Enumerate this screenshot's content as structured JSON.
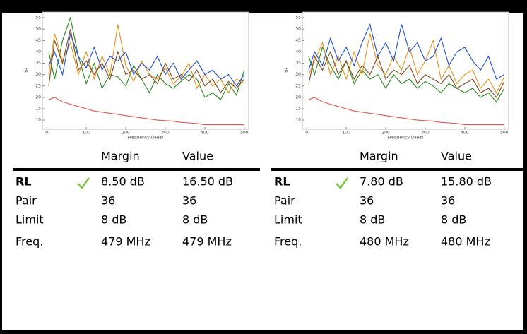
{
  "chart_data": [
    {
      "type": "line",
      "ylabel": "dB",
      "xlabel": "Frequency (MHz)",
      "x": [
        5,
        20,
        40,
        60,
        80,
        100,
        120,
        140,
        160,
        180,
        200,
        220,
        240,
        260,
        280,
        300,
        320,
        340,
        360,
        380,
        400,
        420,
        440,
        460,
        480,
        500
      ],
      "xlim": [
        -11,
        511
      ],
      "ylim": [
        6,
        57.5
      ],
      "xticks": [
        0,
        100,
        200,
        300,
        400,
        500
      ],
      "yticks": [
        10,
        15,
        20,
        25,
        30,
        35,
        40,
        45,
        50,
        55
      ],
      "series": [
        {
          "color": "#2a8a1e",
          "values": [
            40,
            28,
            45,
            55,
            38,
            26,
            35,
            24,
            30,
            29,
            25,
            34,
            28,
            22,
            30,
            26,
            24,
            27,
            30,
            28,
            20,
            22,
            19,
            26,
            21,
            32
          ]
        },
        {
          "color": "#e8901a",
          "values": [
            30,
            48,
            36,
            44,
            30,
            40,
            28,
            38,
            30,
            52,
            34,
            27,
            36,
            30,
            28,
            33,
            26,
            29,
            35,
            24,
            30,
            25,
            28,
            22,
            28,
            26
          ]
        },
        {
          "color": "#1f4fd8",
          "values": [
            34,
            40,
            30,
            48,
            38,
            33,
            42,
            32,
            38,
            36,
            40,
            30,
            35,
            32,
            38,
            30,
            35,
            28,
            32,
            36,
            30,
            32,
            28,
            30,
            25,
            30
          ]
        },
        {
          "color": "#7a4a1e",
          "values": [
            25,
            45,
            35,
            50,
            32,
            36,
            30,
            35,
            28,
            40,
            30,
            32,
            28,
            30,
            26,
            35,
            28,
            30,
            27,
            32,
            25,
            28,
            22,
            27,
            24,
            28
          ]
        },
        {
          "color": "#e8534a",
          "values": [
            19,
            20,
            18,
            17,
            16,
            15,
            14,
            13.5,
            13,
            12.5,
            12,
            11.5,
            11,
            10.5,
            10,
            9.8,
            9.5,
            9,
            8.8,
            8.5,
            8,
            8,
            8,
            8,
            8,
            8
          ]
        }
      ]
    },
    {
      "type": "line",
      "ylabel": "dB",
      "xlabel": "Frequency (MHz)",
      "x": [
        5,
        20,
        40,
        60,
        80,
        100,
        120,
        140,
        160,
        180,
        200,
        220,
        240,
        260,
        280,
        300,
        320,
        340,
        360,
        380,
        400,
        420,
        440,
        460,
        480,
        500
      ],
      "xlim": [
        -11,
        511
      ],
      "ylim": [
        6,
        57.5
      ],
      "xticks": [
        0,
        100,
        200,
        300,
        400,
        500
      ],
      "yticks": [
        10,
        15,
        20,
        25,
        30,
        35,
        40,
        45,
        50,
        55
      ],
      "series": [
        {
          "color": "#2a8a1e",
          "values": [
            38,
            30,
            42,
            34,
            28,
            36,
            26,
            32,
            28,
            30,
            24,
            30,
            26,
            28,
            24,
            27,
            25,
            22,
            26,
            24,
            22,
            24,
            20,
            22,
            18,
            24
          ]
        },
        {
          "color": "#e8901a",
          "values": [
            30,
            36,
            44,
            30,
            38,
            28,
            40,
            30,
            48,
            34,
            30,
            38,
            32,
            42,
            30,
            36,
            45,
            28,
            34,
            26,
            30,
            32,
            24,
            28,
            22,
            29
          ]
        },
        {
          "color": "#1f4fd8",
          "values": [
            32,
            40,
            34,
            46,
            36,
            42,
            34,
            44,
            52,
            38,
            44,
            36,
            52,
            40,
            44,
            36,
            38,
            46,
            34,
            40,
            42,
            36,
            32,
            38,
            28,
            30
          ]
        },
        {
          "color": "#7a4a1e",
          "values": [
            26,
            38,
            32,
            40,
            30,
            36,
            28,
            34,
            30,
            38,
            28,
            32,
            30,
            34,
            26,
            30,
            28,
            26,
            30,
            24,
            26,
            28,
            22,
            24,
            20,
            27
          ]
        },
        {
          "color": "#e8534a",
          "values": [
            19,
            20,
            18,
            17,
            16,
            15,
            14,
            13.5,
            13,
            12.5,
            12,
            11.5,
            11,
            10.5,
            10,
            9.8,
            9.5,
            9,
            8.8,
            8.5,
            8,
            8,
            8,
            8,
            8,
            8
          ]
        }
      ]
    }
  ],
  "panels": [
    {
      "headers": [
        "Margin",
        "Value"
      ],
      "rows": [
        [
          "RL",
          "8.50 dB",
          "16.50 dB"
        ],
        [
          "Pair",
          "36",
          "36"
        ],
        [
          "Limit",
          "8 dB",
          "8 dB"
        ],
        [
          "Freq.",
          "479 MHz",
          "479 MHz"
        ]
      ]
    },
    {
      "headers": [
        "Margin",
        "Value"
      ],
      "rows": [
        [
          "RL",
          "7.80 dB",
          "15.80 dB"
        ],
        [
          "Pair",
          "36",
          "36"
        ],
        [
          "Limit",
          "8 dB",
          "8 dB"
        ],
        [
          "Freq.",
          "480 MHz",
          "480 MHz"
        ]
      ]
    }
  ]
}
